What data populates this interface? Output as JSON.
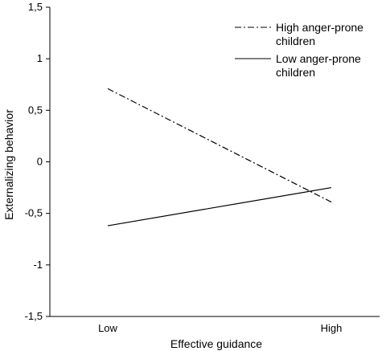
{
  "chart_data": {
    "type": "line",
    "categories": [
      "Low",
      "High"
    ],
    "series": [
      {
        "name": "High anger-prone children",
        "values": [
          0.71,
          -0.39
        ],
        "dash": "dash-dot"
      },
      {
        "name": "Low anger-prone children",
        "values": [
          -0.62,
          -0.25
        ],
        "dash": "solid"
      }
    ],
    "xlabel": "Effective guidance",
    "ylabel": "Externalizing behavior",
    "ylim": [
      -1.5,
      1.5
    ],
    "yticks": [
      -1.5,
      -1,
      -0.5,
      0,
      0.5,
      1,
      1.5
    ],
    "ytick_labels": [
      "-1,5",
      "-1",
      "-0,5",
      "0",
      "0,5",
      "1",
      "1,5"
    ],
    "legend": [
      {
        "line1": "High anger-prone",
        "line2": "children"
      },
      {
        "line1": "Low anger-prone",
        "line2": "children"
      }
    ],
    "legend_position": "top-right",
    "grid": false,
    "line_color": "#000000"
  }
}
